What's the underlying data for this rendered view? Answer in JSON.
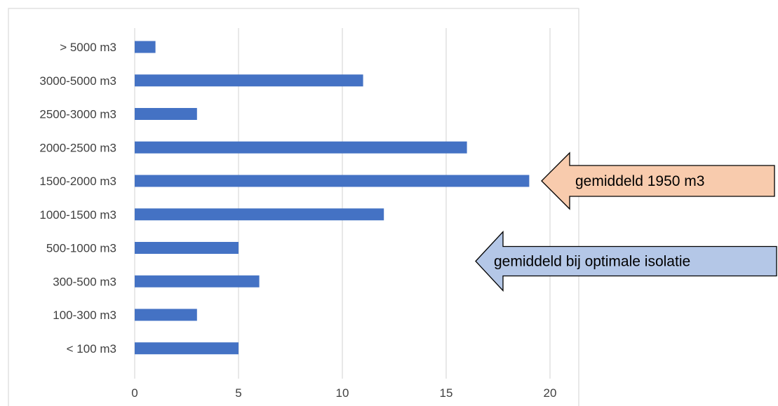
{
  "chart_data": {
    "type": "bar",
    "orientation": "horizontal",
    "categories": [
      "< 100 m3",
      "100-300 m3",
      "300-500 m3",
      "500-1000 m3",
      "1000-1500 m3",
      "1500-2000 m3",
      "2000-2500 m3",
      "2500-3000 m3",
      "3000-5000 m3",
      "> 5000 m3"
    ],
    "values": [
      5,
      3,
      6,
      5,
      12,
      19,
      16,
      3,
      11,
      1
    ],
    "xlim": [
      0,
      21.5
    ],
    "xticks": [
      "0",
      "5",
      "10",
      "15",
      "20"
    ],
    "title": "",
    "xlabel": "",
    "ylabel": "",
    "grid": "vertical",
    "legend": "none",
    "bar_color": "#4472c4",
    "annotations": [
      {
        "text": "gemiddeld 1950 m3",
        "points_to_category": "1500-2000 m3",
        "fill": "#f8cbad"
      },
      {
        "text": "gemiddeld bij optimale isolatie",
        "points_to_category": "500-1000 m3",
        "fill": "#b4c7e7"
      }
    ]
  }
}
